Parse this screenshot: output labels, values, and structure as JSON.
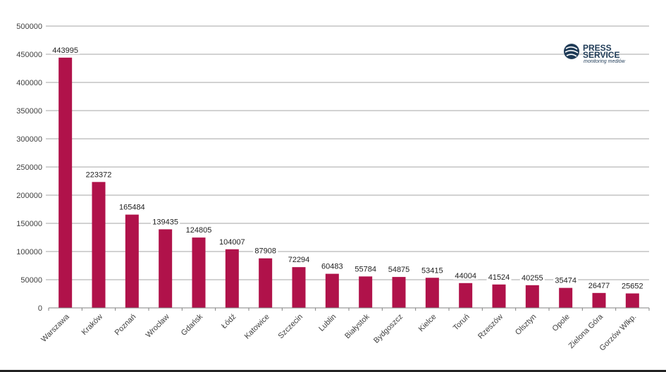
{
  "colors": {
    "bar": "#b0124a",
    "grid": "#a6a6a6",
    "axis": "#808080",
    "logo": "#1f3b57"
  },
  "logo": {
    "line1": "PRESS",
    "line2": "SERVICE",
    "tagline": "monitoring mediów"
  },
  "chart_data": {
    "type": "bar",
    "title": "",
    "xlabel": "",
    "ylabel": "",
    "ylim": [
      0,
      500000
    ],
    "yticks": [
      "0",
      "50000",
      "100000",
      "150000",
      "200000",
      "250000",
      "300000",
      "350000",
      "400000",
      "450000",
      "500000"
    ],
    "grid": true,
    "categories": [
      "Warszawa",
      "Kraków",
      "Poznań",
      "Wrocław",
      "Gdańsk",
      "Łódź",
      "Katowice",
      "Szczecin",
      "Lublin",
      "Białystok",
      "Bydgoszcz",
      "Kielce",
      "Toruń",
      "Rzeszów",
      "Olsztyn",
      "Opole",
      "Zielona Góra",
      "Gorzów Wlkp."
    ],
    "values": [
      443995,
      223372,
      165484,
      139435,
      124805,
      104007,
      87908,
      72294,
      60483,
      55784,
      54875,
      53415,
      44004,
      41524,
      40255,
      35474,
      26477,
      25652
    ],
    "data_labels": [
      "443995",
      "223372",
      "165484",
      "139435",
      "124805",
      "104007",
      "87908",
      "72294",
      "60483",
      "55784",
      "54875",
      "53415",
      "44004",
      "41524",
      "40255",
      "35474",
      "26477",
      "25652"
    ]
  }
}
